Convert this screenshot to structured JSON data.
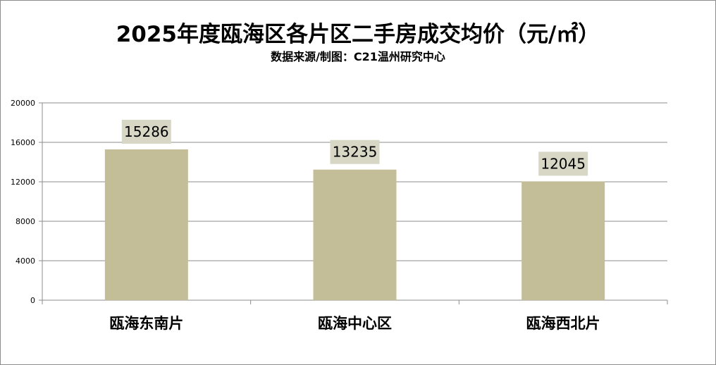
{
  "chart_data": {
    "type": "bar",
    "title": "2025年度瓯海区各片区二手房成交均价（元/㎡）",
    "subtitle": "数据来源/制图：C21温州研究中心",
    "categories": [
      "瓯海东南片",
      "瓯海中心区",
      "瓯海西北片"
    ],
    "values": [
      15286,
      13235,
      12045
    ],
    "data_labels": [
      "15286",
      "13235",
      "12045"
    ],
    "y_ticks": [
      "0",
      "4000",
      "8000",
      "12000",
      "16000",
      "20000"
    ],
    "ylim": [
      0,
      20000
    ],
    "xlabel": "",
    "ylabel": "",
    "grid": true,
    "legend": "none",
    "bar_color": "#c4be98",
    "label_box_color": "#d8d7c6",
    "grid_color": "#8c8c8c"
  }
}
